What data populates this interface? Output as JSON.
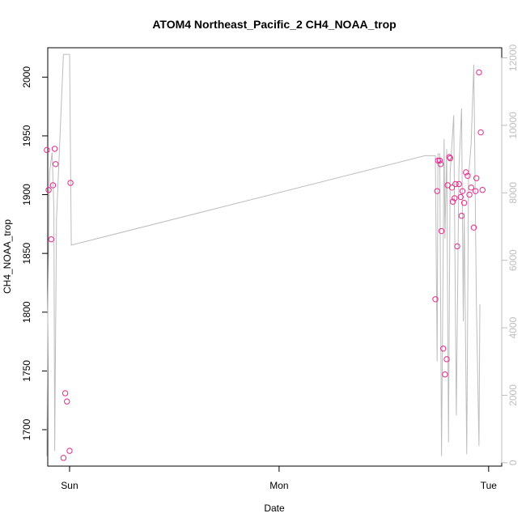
{
  "chart_data": {
    "type": "scatter",
    "title": "ATOM4 Northeast_Pacific_2 CH4_NOAA_trop",
    "xlabel": "Date",
    "ylabel": "CH4_NOAA_trop",
    "x_ticks": [
      {
        "label": "Sun",
        "value": 0
      },
      {
        "label": "Mon",
        "value": 24
      },
      {
        "label": "Tue",
        "value": 48
      }
    ],
    "xlim": [
      -2.5,
      49.5
    ],
    "ylim": [
      1669,
      2025
    ],
    "y_ticks": [
      1700,
      1750,
      1800,
      1850,
      1900,
      1950,
      2000
    ],
    "y2lim": [
      -100,
      12300
    ],
    "y2_ticks": [
      0,
      2000,
      4000,
      6000,
      8000,
      10000,
      12000
    ],
    "grid": false,
    "series": [
      {
        "kind": "points",
        "axis": "left",
        "color": "#e7298a",
        "points": [
          {
            "x": -2.6,
            "y": 1938
          },
          {
            "x": -2.4,
            "y": 1904
          },
          {
            "x": -2.1,
            "y": 1862
          },
          {
            "x": -1.9,
            "y": 1908
          },
          {
            "x": -1.7,
            "y": 1939
          },
          {
            "x": -1.6,
            "y": 1926
          },
          {
            "x": -0.7,
            "y": 1676
          },
          {
            "x": -0.5,
            "y": 1731
          },
          {
            "x": -0.3,
            "y": 1724
          },
          {
            "x": 0.0,
            "y": 1682
          },
          {
            "x": 0.1,
            "y": 1910
          },
          {
            "x": 41.9,
            "y": 1811
          },
          {
            "x": 42.1,
            "y": 1903
          },
          {
            "x": 42.2,
            "y": 1929
          },
          {
            "x": 42.4,
            "y": 1929
          },
          {
            "x": 42.5,
            "y": 1926
          },
          {
            "x": 42.6,
            "y": 1869
          },
          {
            "x": 42.8,
            "y": 1769
          },
          {
            "x": 43.0,
            "y": 1747
          },
          {
            "x": 43.2,
            "y": 1760
          },
          {
            "x": 43.3,
            "y": 1908
          },
          {
            "x": 43.5,
            "y": 1932
          },
          {
            "x": 43.6,
            "y": 1931
          },
          {
            "x": 43.8,
            "y": 1906
          },
          {
            "x": 43.9,
            "y": 1894
          },
          {
            "x": 44.1,
            "y": 1897
          },
          {
            "x": 44.2,
            "y": 1909
          },
          {
            "x": 44.4,
            "y": 1856
          },
          {
            "x": 44.6,
            "y": 1909
          },
          {
            "x": 44.8,
            "y": 1898
          },
          {
            "x": 44.9,
            "y": 1882
          },
          {
            "x": 45.0,
            "y": 1903
          },
          {
            "x": 45.2,
            "y": 1893
          },
          {
            "x": 45.4,
            "y": 1919
          },
          {
            "x": 45.6,
            "y": 1916
          },
          {
            "x": 45.8,
            "y": 1900
          },
          {
            "x": 46.0,
            "y": 1906
          },
          {
            "x": 46.3,
            "y": 1872
          },
          {
            "x": 46.5,
            "y": 1903
          },
          {
            "x": 46.6,
            "y": 1914
          },
          {
            "x": 46.9,
            "y": 2004
          },
          {
            "x": 47.1,
            "y": 1953
          },
          {
            "x": 47.3,
            "y": 1904
          }
        ]
      },
      {
        "kind": "line",
        "axis": "right",
        "color": "#bdbdbd",
        "points": [
          {
            "x": -2.6,
            "y": 200
          },
          {
            "x": -2.5,
            "y": 4300
          },
          {
            "x": -2.3,
            "y": 8600
          },
          {
            "x": -2.0,
            "y": 9200
          },
          {
            "x": -1.8,
            "y": 7500
          },
          {
            "x": -1.7,
            "y": 350
          },
          {
            "x": -1.5,
            "y": 7200
          },
          {
            "x": -0.7,
            "y": 12100
          },
          {
            "x": -0.4,
            "y": 12100
          },
          {
            "x": 0.0,
            "y": 12100
          },
          {
            "x": 0.2,
            "y": 6450
          },
          {
            "x": 40.7,
            "y": 9100
          },
          {
            "x": 41.9,
            "y": 9100
          },
          {
            "x": 42.1,
            "y": 3000
          },
          {
            "x": 42.2,
            "y": 9150
          },
          {
            "x": 42.4,
            "y": 9150
          },
          {
            "x": 42.6,
            "y": 200
          },
          {
            "x": 42.9,
            "y": 9600
          },
          {
            "x": 43.0,
            "y": 6650
          },
          {
            "x": 43.2,
            "y": 9300
          },
          {
            "x": 43.4,
            "y": 600
          },
          {
            "x": 43.6,
            "y": 8600
          },
          {
            "x": 44.0,
            "y": 10300
          },
          {
            "x": 44.3,
            "y": 1400
          },
          {
            "x": 44.6,
            "y": 8700
          },
          {
            "x": 44.9,
            "y": 10500
          },
          {
            "x": 45.1,
            "y": 4200
          },
          {
            "x": 45.2,
            "y": 7400
          },
          {
            "x": 45.5,
            "y": 250
          },
          {
            "x": 45.7,
            "y": 8500
          },
          {
            "x": 46.0,
            "y": 9450
          },
          {
            "x": 46.3,
            "y": 11800
          },
          {
            "x": 46.6,
            "y": 4700
          },
          {
            "x": 46.9,
            "y": 500
          },
          {
            "x": 47.0,
            "y": 4700
          }
        ]
      }
    ]
  }
}
